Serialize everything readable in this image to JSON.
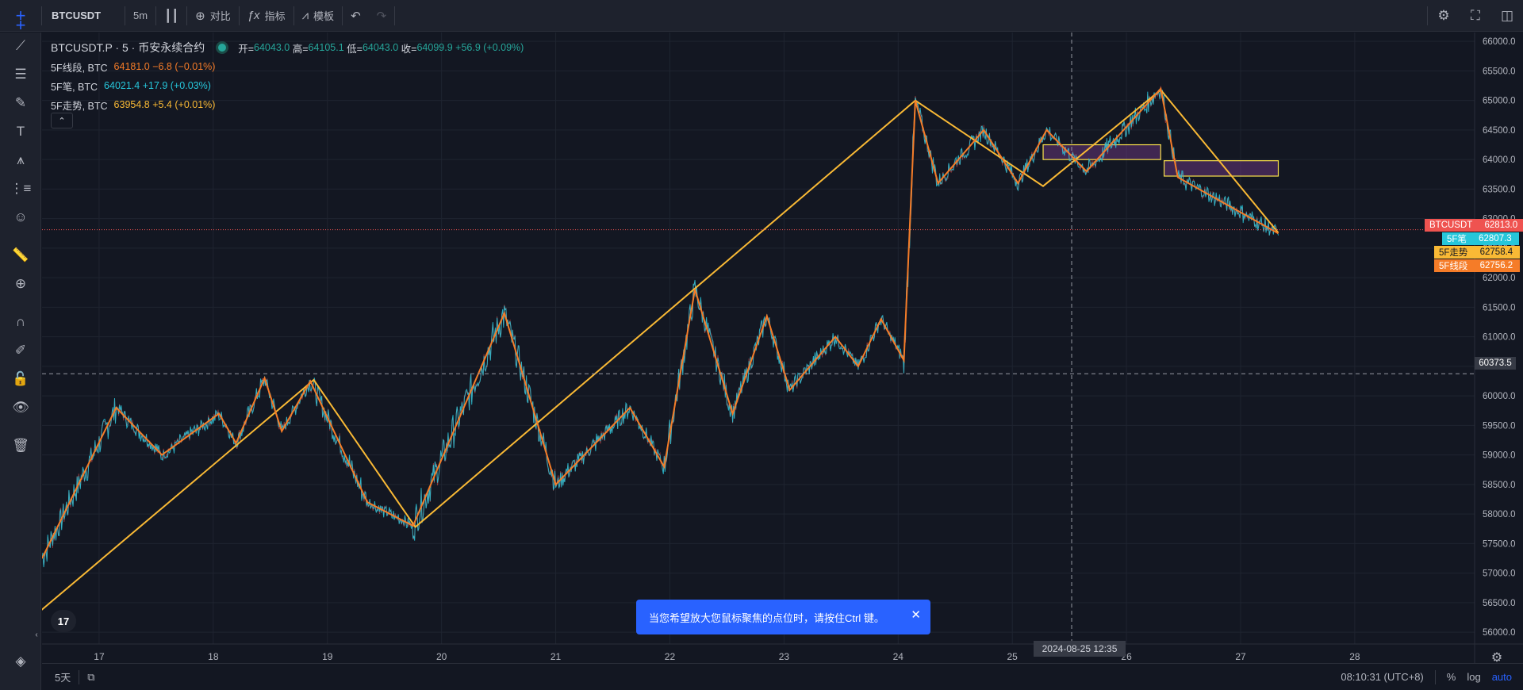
{
  "toolbar": {
    "symbol": "BTCUSDT",
    "interval": "5m",
    "compare": "对比",
    "indicators": "指标",
    "templates": "模板"
  },
  "legend": {
    "title": "BTCUSDT.P · 5 · 币安永续合约",
    "open_label": "开=",
    "open": "64043.0",
    "high_label": "高=",
    "high": "64105.1",
    "low_label": "低=",
    "low": "64043.0",
    "close_label": "收=",
    "close": "64099.9",
    "change": "+56.9 (+0.09%)",
    "studies": [
      {
        "name": "5F线段, BTC",
        "value": "64181.0 −6.8 (−0.01%)",
        "color": "#f57c28"
      },
      {
        "name": "5F笔, BTC",
        "value": "64021.4 +17.9 (+0.03%)",
        "color": "#26c6da"
      },
      {
        "name": "5F走势, BTC",
        "value": "63954.8 +5.4 (+0.01%)",
        "color": "#f9b935"
      }
    ]
  },
  "price_labels": [
    {
      "name": "BTCUSDT",
      "value": "62813.0",
      "name_bg": "#ef5350",
      "val_bg": "#ef5350"
    },
    {
      "name": "5F笔",
      "value": "62807.3",
      "name_bg": "#26c6da",
      "val_bg": "#26c6da"
    },
    {
      "name": "5F走势",
      "value": "62758.4",
      "name_bg": "#f9b935",
      "val_bg": "#f9b935"
    },
    {
      "name": "5F线段",
      "value": "62756.2",
      "name_bg": "#f57c28",
      "val_bg": "#f57c28"
    }
  ],
  "crosshair": {
    "time": "2024-08-25   12:35",
    "price": "60373.5"
  },
  "toast": {
    "message": "当您希望放大您鼠标聚焦的点位时，请按住Ctrl 键。"
  },
  "bottom": {
    "range": "5天",
    "timezone": "08:10:31 (UTC+8)",
    "percent": "%",
    "log": "log",
    "auto": "auto"
  },
  "tv_logo": "17",
  "chart_data": {
    "type": "line",
    "x_ticks": [
      "17",
      "18",
      "19",
      "20",
      "21",
      "22",
      "23",
      "24",
      "25",
      "26",
      "27",
      "28"
    ],
    "y_ticks": [
      "56000.0",
      "56500.0",
      "57000.0",
      "57500.0",
      "58000.0",
      "58500.0",
      "59000.0",
      "59500.0",
      "60000.0",
      "60500.0",
      "61000.0",
      "61500.0",
      "62000.0",
      "62500.0",
      "63000.0",
      "63500.0",
      "64000.0",
      "64500.0",
      "65000.0",
      "65500.0",
      "66000.0"
    ],
    "ylim": [
      55800,
      66150
    ],
    "xlim": [
      16.5,
      29.05
    ],
    "series": [
      {
        "name": "5F走势",
        "color": "#f9b935",
        "points": [
          [
            16.48,
            56350
          ],
          [
            18.88,
            60270
          ],
          [
            19.77,
            57780
          ],
          [
            24.15,
            65000
          ],
          [
            25.27,
            63550
          ],
          [
            26.3,
            65180
          ],
          [
            27.33,
            62760
          ]
        ]
      },
      {
        "name": "5F线段",
        "color": "#f57c28",
        "points": [
          [
            16.5,
            57250
          ],
          [
            17.15,
            59800
          ],
          [
            17.55,
            59000
          ],
          [
            18.05,
            59700
          ],
          [
            18.2,
            59200
          ],
          [
            18.45,
            60300
          ],
          [
            18.6,
            59400
          ],
          [
            18.85,
            60250
          ],
          [
            19.35,
            58200
          ],
          [
            19.75,
            57800
          ],
          [
            20.55,
            61400
          ],
          [
            21.0,
            58500
          ],
          [
            21.65,
            59800
          ],
          [
            21.95,
            58800
          ],
          [
            22.22,
            61800
          ],
          [
            22.55,
            59700
          ],
          [
            22.85,
            61350
          ],
          [
            23.05,
            60100
          ],
          [
            23.45,
            61000
          ],
          [
            23.65,
            60500
          ],
          [
            23.85,
            61300
          ],
          [
            24.05,
            60600
          ],
          [
            24.15,
            65000
          ],
          [
            24.35,
            63600
          ],
          [
            24.75,
            64500
          ],
          [
            25.05,
            63600
          ],
          [
            25.3,
            64500
          ],
          [
            25.65,
            63800
          ],
          [
            26.3,
            65200
          ],
          [
            26.45,
            63700
          ],
          [
            27.33,
            62750
          ]
        ]
      }
    ],
    "boxes": [
      {
        "x0": 25.27,
        "x1": 26.3,
        "y0": 64000,
        "y1": 64250
      },
      {
        "x0": 26.33,
        "x1": 27.33,
        "y0": 63720,
        "y1": 63980
      }
    ]
  }
}
